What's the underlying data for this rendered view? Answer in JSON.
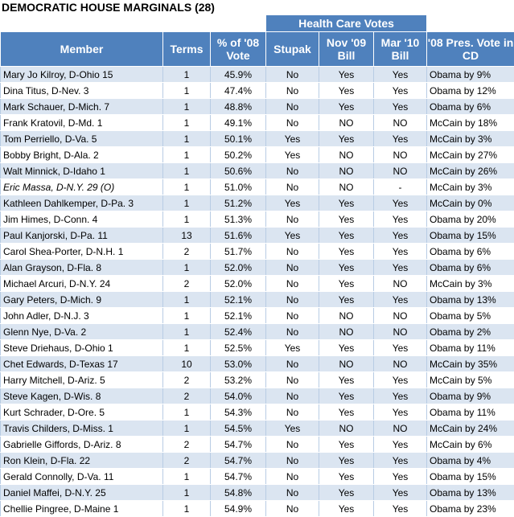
{
  "title": "DEMOCRATIC HOUSE MARGINALS (28)",
  "group_header": "Health Care Votes",
  "columns": {
    "member": "Member",
    "terms": "Terms",
    "pct_vote": "% of '08 Vote",
    "stupak": "Stupak",
    "nov09": "Nov '09 Bill",
    "mar10": "Mar '10 Bill",
    "pres": "'08 Pres. Vote in CD"
  },
  "rows": [
    {
      "member": "Mary Jo Kilroy, D-Ohio 15",
      "terms": "1",
      "pct": "45.9%",
      "stupak": "No",
      "nov": "Yes",
      "mar": "Yes",
      "pres": "Obama by 9%"
    },
    {
      "member": "Dina Titus, D-Nev. 3",
      "terms": "1",
      "pct": "47.4%",
      "stupak": "No",
      "nov": "Yes",
      "mar": "Yes",
      "pres": "Obama by 12%"
    },
    {
      "member": "Mark Schauer, D-Mich. 7",
      "terms": "1",
      "pct": "48.8%",
      "stupak": "No",
      "nov": "Yes",
      "mar": "Yes",
      "pres": "Obama by 6%"
    },
    {
      "member": "Frank Kratovil, D-Md. 1",
      "terms": "1",
      "pct": "49.1%",
      "stupak": "No",
      "nov": "NO",
      "mar": "NO",
      "pres": "McCain by 18%"
    },
    {
      "member": "Tom Perriello, D-Va. 5",
      "terms": "1",
      "pct": "50.1%",
      "stupak": "Yes",
      "nov": "Yes",
      "mar": "Yes",
      "pres": "McCain by 3%"
    },
    {
      "member": "Bobby Bright, D-Ala. 2",
      "terms": "1",
      "pct": "50.2%",
      "stupak": "Yes",
      "nov": "NO",
      "mar": "NO",
      "pres": "McCain by 27%"
    },
    {
      "member": "Walt Minnick, D-Idaho 1",
      "terms": "1",
      "pct": "50.6%",
      "stupak": "No",
      "nov": "NO",
      "mar": "NO",
      "pres": "McCain by 26%"
    },
    {
      "member": "Eric Massa, D-N.Y. 29 (O)",
      "italic": true,
      "terms": "1",
      "pct": "51.0%",
      "stupak": "No",
      "nov": "NO",
      "mar": "-",
      "pres": "McCain by 3%"
    },
    {
      "member": "Kathleen Dahlkemper, D-Pa. 3",
      "terms": "1",
      "pct": "51.2%",
      "stupak": "Yes",
      "nov": "Yes",
      "mar": "Yes",
      "pres": "McCain by 0%"
    },
    {
      "member": "Jim Himes, D-Conn. 4",
      "terms": "1",
      "pct": "51.3%",
      "stupak": "No",
      "nov": "Yes",
      "mar": "Yes",
      "pres": "Obama by 20%"
    },
    {
      "member": "Paul Kanjorski, D-Pa. 11",
      "terms": "13",
      "pct": "51.6%",
      "stupak": "Yes",
      "nov": "Yes",
      "mar": "Yes",
      "pres": "Obama by 15%"
    },
    {
      "member": "Carol Shea-Porter, D-N.H. 1",
      "terms": "2",
      "pct": "51.7%",
      "stupak": "No",
      "nov": "Yes",
      "mar": "Yes",
      "pres": "Obama by 6%"
    },
    {
      "member": "Alan Grayson, D-Fla. 8",
      "terms": "1",
      "pct": "52.0%",
      "stupak": "No",
      "nov": "Yes",
      "mar": "Yes",
      "pres": "Obama by 6%"
    },
    {
      "member": "Michael Arcuri, D-N.Y. 24",
      "terms": "2",
      "pct": "52.0%",
      "stupak": "No",
      "nov": "Yes",
      "mar": "NO",
      "pres": "McCain by 3%"
    },
    {
      "member": "Gary Peters, D-Mich. 9",
      "terms": "1",
      "pct": "52.1%",
      "stupak": "No",
      "nov": "Yes",
      "mar": "Yes",
      "pres": "Obama by 13%"
    },
    {
      "member": "John Adler, D-N.J. 3",
      "terms": "1",
      "pct": "52.1%",
      "stupak": "No",
      "nov": "NO",
      "mar": "NO",
      "pres": "Obama by 5%"
    },
    {
      "member": "Glenn Nye, D-Va. 2",
      "terms": "1",
      "pct": "52.4%",
      "stupak": "No",
      "nov": "NO",
      "mar": "NO",
      "pres": "Obama by 2%"
    },
    {
      "member": "Steve Driehaus, D-Ohio 1",
      "terms": "1",
      "pct": "52.5%",
      "stupak": "Yes",
      "nov": "Yes",
      "mar": "Yes",
      "pres": "Obama by 11%"
    },
    {
      "member": "Chet Edwards, D-Texas 17",
      "terms": "10",
      "pct": "53.0%",
      "stupak": "No",
      "nov": "NO",
      "mar": "NO",
      "pres": "McCain by 35%"
    },
    {
      "member": "Harry Mitchell, D-Ariz. 5",
      "terms": "2",
      "pct": "53.2%",
      "stupak": "No",
      "nov": "Yes",
      "mar": "Yes",
      "pres": "McCain by 5%"
    },
    {
      "member": "Steve Kagen, D-Wis. 8",
      "terms": "2",
      "pct": "54.0%",
      "stupak": "No",
      "nov": "Yes",
      "mar": "Yes",
      "pres": "Obama by 9%"
    },
    {
      "member": "Kurt Schrader, D-Ore. 5",
      "terms": "1",
      "pct": "54.3%",
      "stupak": "No",
      "nov": "Yes",
      "mar": "Yes",
      "pres": "Obama by 11%"
    },
    {
      "member": "Travis Childers, D-Miss. 1",
      "terms": "1",
      "pct": "54.5%",
      "stupak": "Yes",
      "nov": "NO",
      "mar": "NO",
      "pres": "McCain by 24%"
    },
    {
      "member": "Gabrielle Giffords, D-Ariz. 8",
      "terms": "2",
      "pct": "54.7%",
      "stupak": "No",
      "nov": "Yes",
      "mar": "Yes",
      "pres": "McCain by 6%"
    },
    {
      "member": "Ron Klein, D-Fla. 22",
      "terms": "2",
      "pct": "54.7%",
      "stupak": "No",
      "nov": "Yes",
      "mar": "Yes",
      "pres": "Obama by 4%"
    },
    {
      "member": "Gerald Connolly, D-Va. 11",
      "terms": "1",
      "pct": "54.7%",
      "stupak": "No",
      "nov": "Yes",
      "mar": "Yes",
      "pres": "Obama by 15%"
    },
    {
      "member": "Daniel Maffei, D-N.Y. 25",
      "terms": "1",
      "pct": "54.8%",
      "stupak": "No",
      "nov": "Yes",
      "mar": "Yes",
      "pres": "Obama by 13%"
    },
    {
      "member": "Chellie Pingree, D-Maine 1",
      "terms": "1",
      "pct": "54.9%",
      "stupak": "No",
      "nov": "Yes",
      "mar": "Yes",
      "pres": "Obama by 23%"
    }
  ]
}
